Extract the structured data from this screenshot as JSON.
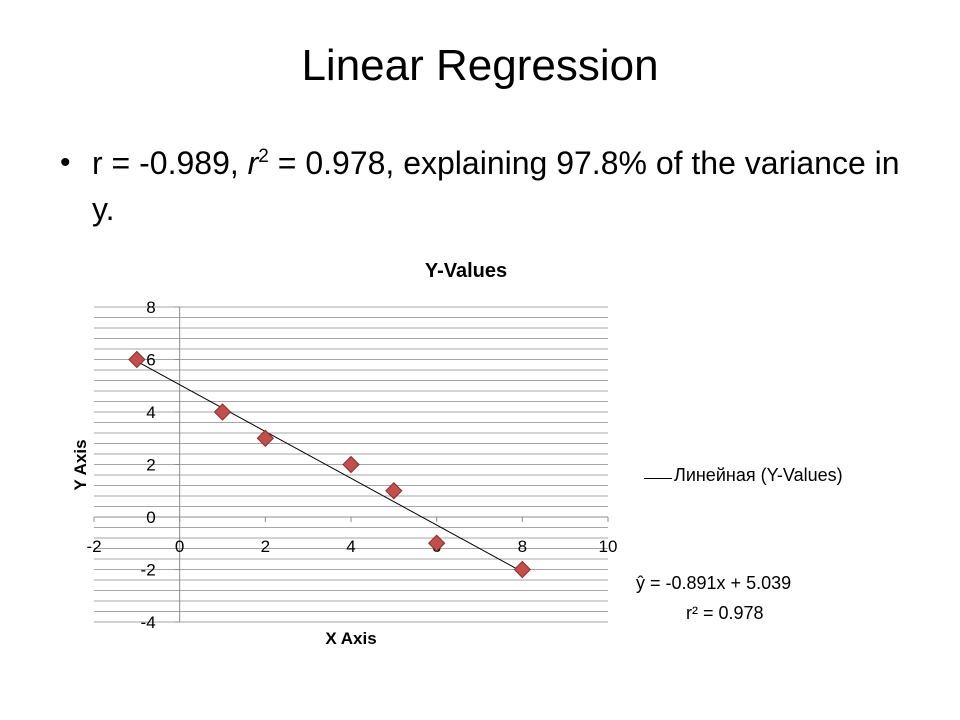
{
  "slide": {
    "title": "Linear Regression",
    "bullet": {
      "marker": "•",
      "pre": "r = -0.989, ",
      "r_var": "r",
      "sup": "2",
      "post": " =  0.978, explaining 97.8% of the variance in y."
    }
  },
  "chart_data": {
    "type": "scatter",
    "title": "Y-Values",
    "xlabel": "X Axis",
    "ylabel": "Y Axis",
    "xlim": [
      -2,
      10
    ],
    "ylim": [
      -4,
      8
    ],
    "x_ticks": [
      "-2",
      "0",
      "2",
      "4",
      "6",
      "8",
      "10"
    ],
    "y_ticks": [
      "8",
      "6",
      "4",
      "2",
      "0",
      "-2",
      "-4"
    ],
    "grid": true,
    "series": [
      {
        "name": "Y-Values",
        "points": [
          {
            "x": -1,
            "y": 6
          },
          {
            "x": 1,
            "y": 4
          },
          {
            "x": 2,
            "y": 3
          },
          {
            "x": 4,
            "y": 2
          },
          {
            "x": 5,
            "y": 1
          },
          {
            "x": 6,
            "y": -1
          },
          {
            "x": 8,
            "y": -2
          }
        ],
        "marker_color": "#c0504d"
      }
    ],
    "trendline": {
      "legend_label": "Линейная (Y-Values)",
      "slope": -0.891,
      "intercept": 5.039,
      "equation": "ŷ = -0.891x + 5.039",
      "r2": "r² = 0.978"
    }
  }
}
